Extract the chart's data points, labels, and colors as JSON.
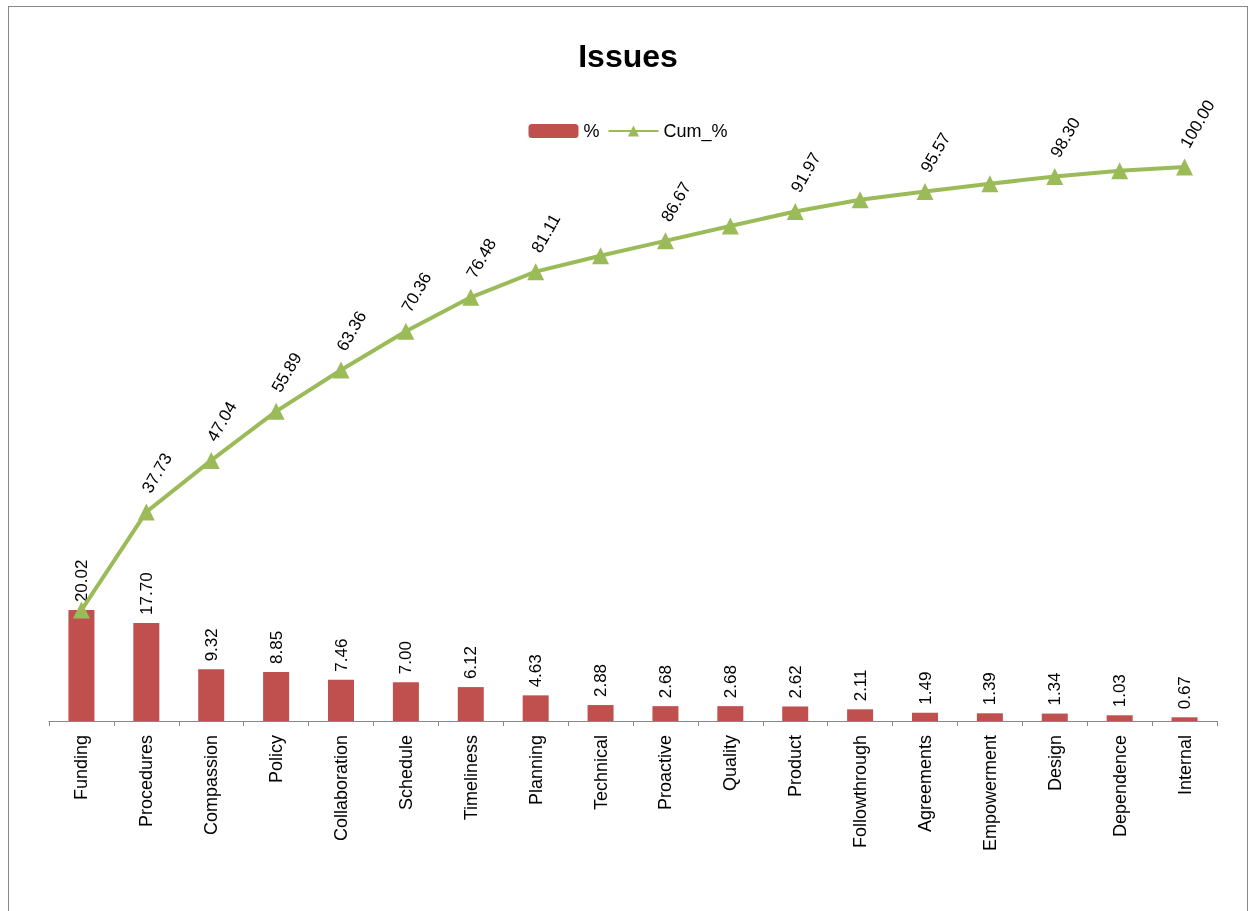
{
  "chart_data": {
    "type": "bar",
    "title": "Issues",
    "categories": [
      "Funding",
      "Procedures",
      "Compassion",
      "Policy",
      "Collaboration",
      "Schedule",
      "Timeliness",
      "Planning",
      "Technical",
      "Proactive",
      "Quality",
      "Product",
      "Followthrough",
      "Agreements",
      "Empowerment",
      "Design",
      "Dependence",
      "Internal"
    ],
    "series": [
      {
        "name": "%",
        "color": "#c0504d",
        "value_labels": [
          "20.02",
          "17.70",
          "9.32",
          "8.85",
          "7.46",
          "7.00",
          "6.12",
          "4.63",
          "2.88",
          "2.68",
          "2.68",
          "2.62",
          "2.11",
          "1.49",
          "1.39",
          "1.34",
          "1.03",
          "0.67"
        ],
        "values": [
          20.02,
          17.7,
          9.32,
          8.85,
          7.46,
          7.0,
          6.12,
          4.63,
          2.88,
          2.68,
          2.68,
          2.62,
          2.11,
          1.49,
          1.39,
          1.34,
          1.03,
          0.67
        ]
      },
      {
        "name": "Cum_%",
        "type": "line",
        "color": "#9bbb59",
        "marker": "triangle",
        "values": [
          20.02,
          37.73,
          47.04,
          55.89,
          63.36,
          70.36,
          76.48,
          81.11,
          83.99,
          86.67,
          89.35,
          91.97,
          94.08,
          95.57,
          96.96,
          98.3,
          99.33,
          100.0
        ],
        "value_labels": [
          null,
          "37.73",
          "47.04",
          "55.89",
          "63.36",
          "70.36",
          "76.48",
          "81.11",
          null,
          "86.67",
          null,
          "91.97",
          null,
          "95.57",
          null,
          "98.30",
          null,
          "100.00"
        ]
      }
    ],
    "legend": "top"
  }
}
